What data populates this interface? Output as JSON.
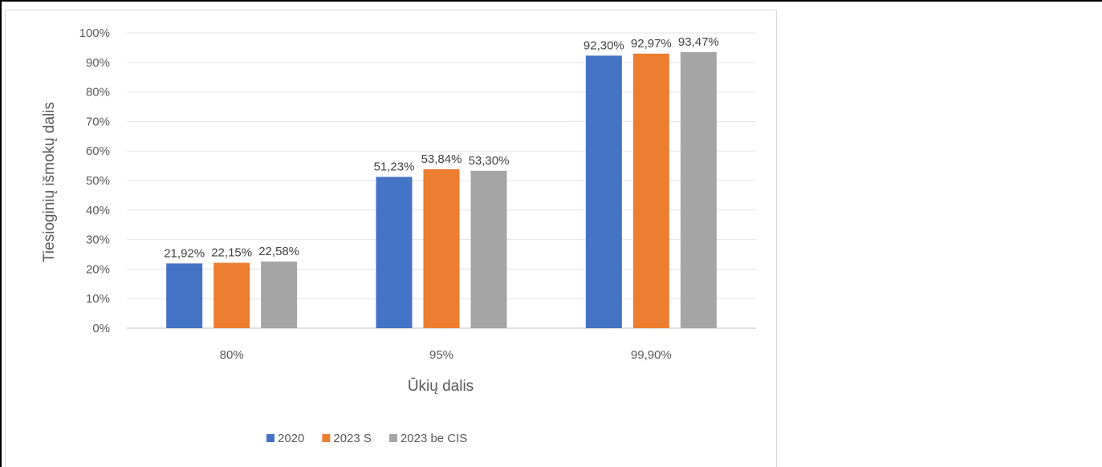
{
  "chart_data": {
    "type": "bar",
    "categories": [
      "80%",
      "95%",
      "99,90%"
    ],
    "series": [
      {
        "name": "2020",
        "values": [
          21.92,
          51.23,
          92.3
        ],
        "labels": [
          "21,92%",
          "51,23%",
          "92,30%"
        ],
        "color": "#4472c4"
      },
      {
        "name": "2023 S",
        "values": [
          22.15,
          53.84,
          92.97
        ],
        "labels": [
          "22,15%",
          "53,84%",
          "92,97%"
        ],
        "color": "#ed7d31"
      },
      {
        "name": "2023 be CIS",
        "values": [
          22.58,
          53.3,
          93.47
        ],
        "labels": [
          "22,58%",
          "53,30%",
          "93,47%"
        ],
        "color": "#a5a5a5"
      }
    ],
    "xlabel": "Ūkių dalis",
    "ylabel": "Tiesioginių išmokų dalis",
    "ylim": [
      0,
      100
    ],
    "yticks": [
      "0%",
      "10%",
      "20%",
      "30%",
      "40%",
      "50%",
      "60%",
      "70%",
      "80%",
      "90%",
      "100%"
    ],
    "grid": true,
    "legend_position": "bottom"
  }
}
